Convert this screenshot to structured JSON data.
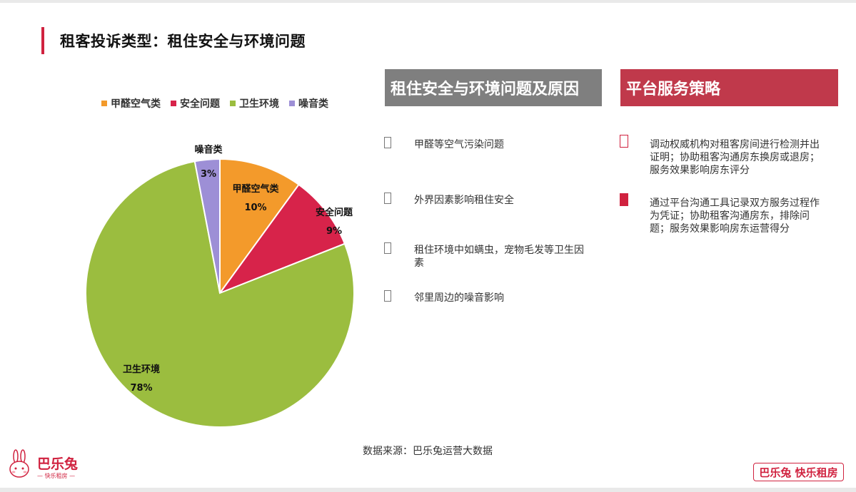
{
  "title": "租客投诉类型：租住安全与环境问题",
  "legend": [
    {
      "label": "甲醛空气类",
      "color": "#f39a2b"
    },
    {
      "label": "安全问题",
      "color": "#d7234a"
    },
    {
      "label": "卫生环境",
      "color": "#9bbd3f"
    },
    {
      "label": "噪音类",
      "color": "#9d8fd6"
    }
  ],
  "chart_data": {
    "type": "pie",
    "slices": [
      {
        "name": "甲醛空气类",
        "value": 10,
        "label": "10%",
        "color": "#f39a2b"
      },
      {
        "name": "安全问题",
        "value": 9,
        "label": "9%",
        "color": "#d7234a"
      },
      {
        "name": "卫生环境",
        "value": 78,
        "label": "78%",
        "color": "#9bbd3f"
      },
      {
        "name": "噪音类",
        "value": 3,
        "label": "3%",
        "color": "#9d8fd6"
      }
    ]
  },
  "causes_header": "租住安全与环境问题及原因",
  "strategy_header": "平台服务策略",
  "causes": [
    "甲醛等空气污染问题",
    "外界因素影响租住安全",
    "租住环境中如螨虫，宠物毛发等卫生因素",
    "邻里周边的噪音影响"
  ],
  "strategies": [
    "调动权威机构对租客房间进行检测并出证明；协助租客沟通房东换房或退房；服务效果影响房东评分",
    "通过平台沟通工具记录双方服务过程作为凭证；协助租客沟通房东，排除问题；服务效果影响房东运营得分"
  ],
  "source": "数据来源：巴乐兔运营大数据",
  "logo_left": {
    "brand": "巴乐兔",
    "tagline": "— 快乐租房 —"
  },
  "logo_right": "巴乐兔 快乐租房"
}
